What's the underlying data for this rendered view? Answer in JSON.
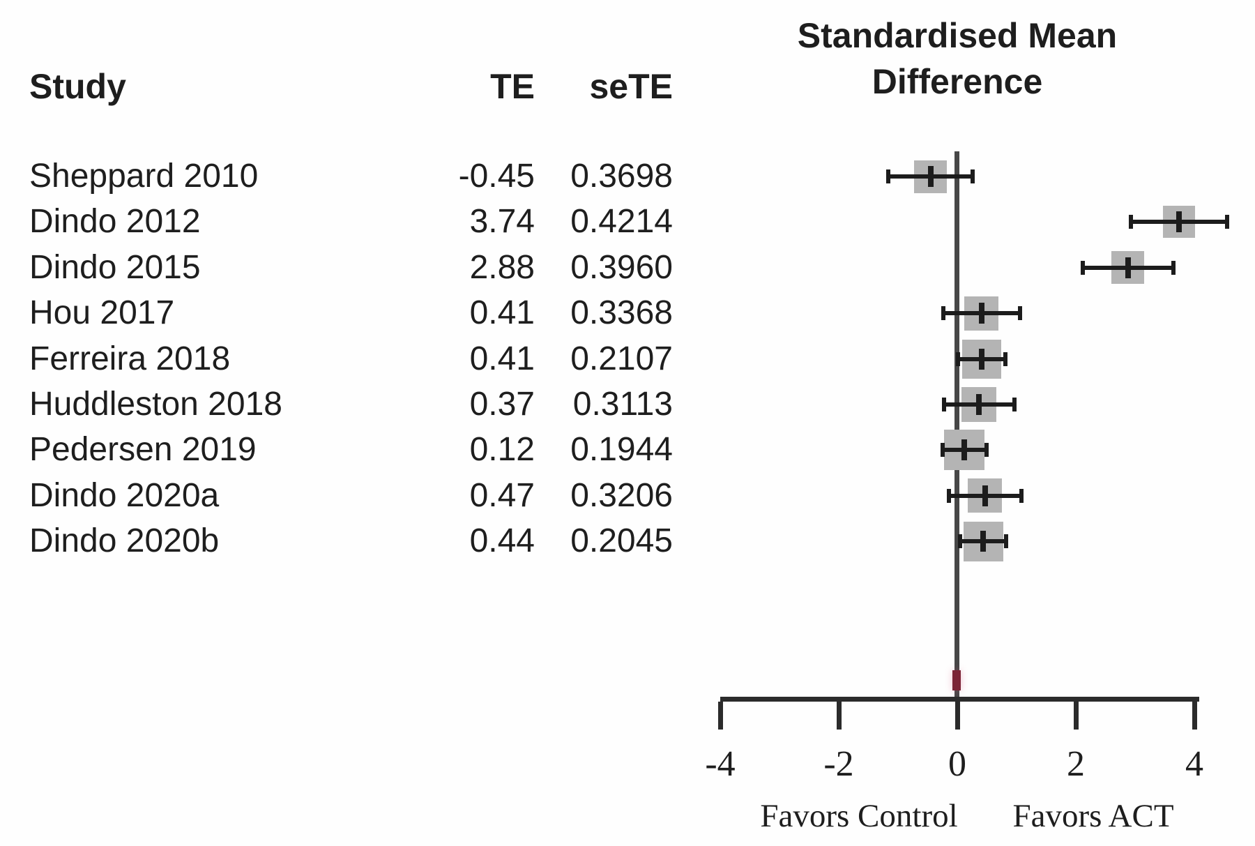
{
  "table": {
    "study_header": "Study",
    "te_header": "TE",
    "sete_header": "seTE"
  },
  "chart_data": {
    "type": "forest",
    "title": "Standardised Mean Difference",
    "columns": [
      "Study",
      "TE",
      "seTE"
    ],
    "studies": [
      {
        "study": "Sheppard 2010",
        "TE": -0.45,
        "seTE": 0.3698
      },
      {
        "study": "Dindo 2012",
        "TE": 3.74,
        "seTE": 0.4214
      },
      {
        "study": "Dindo 2015",
        "TE": 2.88,
        "seTE": 0.396
      },
      {
        "study": "Hou 2017",
        "TE": 0.41,
        "seTE": 0.3368
      },
      {
        "study": "Ferreira 2018",
        "TE": 0.41,
        "seTE": 0.2107
      },
      {
        "study": "Huddleston 2018",
        "TE": 0.37,
        "seTE": 0.3113
      },
      {
        "study": "Pedersen 2019",
        "TE": 0.12,
        "seTE": 0.1944
      },
      {
        "study": "Dindo 2020a",
        "TE": 0.47,
        "seTE": 0.3206
      },
      {
        "study": "Dindo 2020b",
        "TE": 0.44,
        "seTE": 0.2045
      }
    ],
    "x_axis": {
      "ticks": [
        -4,
        -2,
        0,
        2,
        4
      ],
      "range": [
        -4,
        4
      ],
      "zero_reference_line": true
    },
    "ci_level": 0.95,
    "footer_left": "Favors Control",
    "footer_right": "Favors ACT",
    "colors": {
      "square": "#b4b4b4",
      "ci_line": "#1c1c1c",
      "zero_line": "#474747",
      "axis": "#2b2b2b",
      "pooled_mark": "#7b2436"
    }
  }
}
